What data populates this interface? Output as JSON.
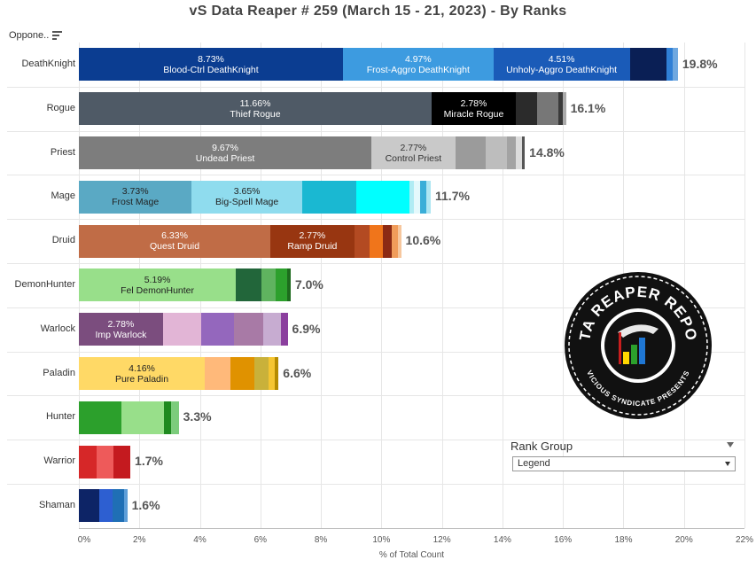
{
  "chart_data": {
    "type": "bar",
    "orientation": "horizontal",
    "stacked": true,
    "title": "vS Data Reaper #  259 (March 15 - 21, 2023) - By Ranks",
    "row_header": "Oppone..",
    "xlabel": "% of Total Count",
    "xlim": [
      0,
      22
    ],
    "x_ticks": [
      "0%",
      "2%",
      "4%",
      "6%",
      "8%",
      "10%",
      "12%",
      "14%",
      "16%",
      "18%",
      "20%",
      "22%"
    ],
    "grid": true,
    "categories": [
      "DeathKnight",
      "Rogue",
      "Priest",
      "Mage",
      "Druid",
      "DemonHunter",
      "Warlock",
      "Paladin",
      "Hunter",
      "Warrior",
      "Shaman"
    ],
    "rows": [
      {
        "class": "DeathKnight",
        "total_label": "19.8%",
        "segments": [
          {
            "value": 8.73,
            "color": "#0b3d91",
            "pct": "8.73%",
            "name": "Blood-Ctrl DeathKnight",
            "text_color": "#ffffff"
          },
          {
            "value": 4.97,
            "color": "#3d9be0",
            "pct": "4.97%",
            "name": "Frost-Aggro DeathKnight",
            "text_color": "#ffffff"
          },
          {
            "value": 4.51,
            "color": "#1a5bb8",
            "pct": "4.51%",
            "name": "Unholy-Aggro DeathKnight",
            "text_color": "#ffffff"
          },
          {
            "value": 1.2,
            "color": "#0a1f55"
          },
          {
            "value": 0.23,
            "color": "#2f7fd6"
          },
          {
            "value": 0.16,
            "color": "#6fa8e0"
          }
        ]
      },
      {
        "class": "Rogue",
        "total_label": "16.1%",
        "segments": [
          {
            "value": 11.66,
            "color": "#4f5a66",
            "pct": "11.66%",
            "name": "Thief Rogue",
            "text_color": "#ffffff"
          },
          {
            "value": 2.78,
            "color": "#000000",
            "pct": "2.78%",
            "name": "Miracle Rogue",
            "text_color": "#ffffff"
          },
          {
            "value": 0.7,
            "color": "#2b2b2b"
          },
          {
            "value": 0.72,
            "color": "#777777"
          },
          {
            "value": 0.14,
            "color": "#3a3a3a"
          },
          {
            "value": 0.1,
            "color": "#aaaaaa"
          }
        ]
      },
      {
        "class": "Priest",
        "total_label": "14.8%",
        "segments": [
          {
            "value": 9.67,
            "color": "#7d7d7d",
            "pct": "9.67%",
            "name": "Undead Priest",
            "text_color": "#ffffff"
          },
          {
            "value": 2.77,
            "color": "#c9c9c9",
            "pct": "2.77%",
            "name": "Control Priest",
            "text_color": "#333333"
          },
          {
            "value": 1.0,
            "color": "#9b9b9b"
          },
          {
            "value": 0.7,
            "color": "#bdbdbd"
          },
          {
            "value": 0.3,
            "color": "#a3a3a3"
          },
          {
            "value": 0.2,
            "color": "#dcdcdc"
          },
          {
            "value": 0.1,
            "color": "#555555"
          }
        ]
      },
      {
        "class": "Mage",
        "total_label": "11.7%",
        "segments": [
          {
            "value": 3.73,
            "color": "#5aa9c4",
            "pct": "3.73%",
            "name": "Frost Mage",
            "text_color": "#222222"
          },
          {
            "value": 3.65,
            "color": "#8fdcee",
            "pct": "3.65%",
            "name": "Big-Spell Mage",
            "text_color": "#222222"
          },
          {
            "value": 1.8,
            "color": "#1ab8d2"
          },
          {
            "value": 1.75,
            "color": "#00ffff"
          },
          {
            "value": 0.15,
            "color": "#b0ecf4"
          },
          {
            "value": 0.2,
            "color": "#e4f9fc"
          },
          {
            "value": 0.2,
            "color": "#3aaed8"
          },
          {
            "value": 0.15,
            "color": "#aee6f2"
          }
        ]
      },
      {
        "class": "Druid",
        "total_label": "10.6%",
        "segments": [
          {
            "value": 6.33,
            "color": "#c06c46",
            "pct": "6.33%",
            "name": "Quest Druid",
            "text_color": "#ffffff"
          },
          {
            "value": 2.77,
            "color": "#983611",
            "pct": "2.77%",
            "name": "Ramp Druid",
            "text_color": "#ffffff"
          },
          {
            "value": 0.5,
            "color": "#b34a22"
          },
          {
            "value": 0.45,
            "color": "#f0751b"
          },
          {
            "value": 0.3,
            "color": "#8c2a14"
          },
          {
            "value": 0.2,
            "color": "#f09c5a"
          },
          {
            "value": 0.1,
            "color": "#f6c79e"
          }
        ]
      },
      {
        "class": "DemonHunter",
        "total_label": "7.0%",
        "segments": [
          {
            "value": 5.19,
            "color": "#98df8a",
            "pct": "5.19%",
            "name": "Fel DemonHunter",
            "text_color": "#222222"
          },
          {
            "value": 0.85,
            "color": "#22663a"
          },
          {
            "value": 0.45,
            "color": "#5fb35f"
          },
          {
            "value": 0.4,
            "color": "#2ca02c"
          },
          {
            "value": 0.11,
            "color": "#1d6b1d"
          }
        ]
      },
      {
        "class": "Warlock",
        "total_label": "6.9%",
        "segments": [
          {
            "value": 2.78,
            "color": "#7b4d7e",
            "pct": "2.78%",
            "name": "Imp Warlock",
            "text_color": "#ffffff"
          },
          {
            "value": 1.25,
            "color": "#e2b5d6"
          },
          {
            "value": 1.1,
            "color": "#9467bd"
          },
          {
            "value": 0.95,
            "color": "#a87aa6"
          },
          {
            "value": 0.6,
            "color": "#c7acd1"
          },
          {
            "value": 0.22,
            "color": "#8b3f9e"
          }
        ]
      },
      {
        "class": "Paladin",
        "total_label": "6.6%",
        "segments": [
          {
            "value": 4.16,
            "color": "#ffd966",
            "pct": "4.16%",
            "name": "Pure Paladin",
            "text_color": "#222222"
          },
          {
            "value": 0.85,
            "color": "#ffb97a"
          },
          {
            "value": 0.8,
            "color": "#e09200"
          },
          {
            "value": 0.45,
            "color": "#c9b13a"
          },
          {
            "value": 0.2,
            "color": "#f5c531"
          },
          {
            "value": 0.14,
            "color": "#b58b00"
          }
        ]
      },
      {
        "class": "Hunter",
        "total_label": "3.3%",
        "segments": [
          {
            "value": 1.42,
            "color": "#2ca02c"
          },
          {
            "value": 1.38,
            "color": "#98df8a"
          },
          {
            "value": 0.25,
            "color": "#1f8a1f"
          },
          {
            "value": 0.25,
            "color": "#7ccc7c"
          }
        ]
      },
      {
        "class": "Warrior",
        "total_label": "1.7%",
        "segments": [
          {
            "value": 0.6,
            "color": "#d62728"
          },
          {
            "value": 0.55,
            "color": "#ee5a5a"
          },
          {
            "value": 0.55,
            "color": "#c41a1f"
          }
        ]
      },
      {
        "class": "Shaman",
        "total_label": "1.6%",
        "segments": [
          {
            "value": 0.68,
            "color": "#0d2466"
          },
          {
            "value": 0.42,
            "color": "#2d5fd1"
          },
          {
            "value": 0.38,
            "color": "#1f6fb5"
          },
          {
            "value": 0.12,
            "color": "#5e9ed8"
          }
        ]
      }
    ]
  },
  "filter": {
    "title": "Rank Group",
    "selected": "Legend"
  },
  "logo": {
    "icon": "data-reaper-logo",
    "top_text": "DATA REAPER REPORT",
    "bottom_text": "VICIOUS SYNDICATE PRESENTS"
  }
}
